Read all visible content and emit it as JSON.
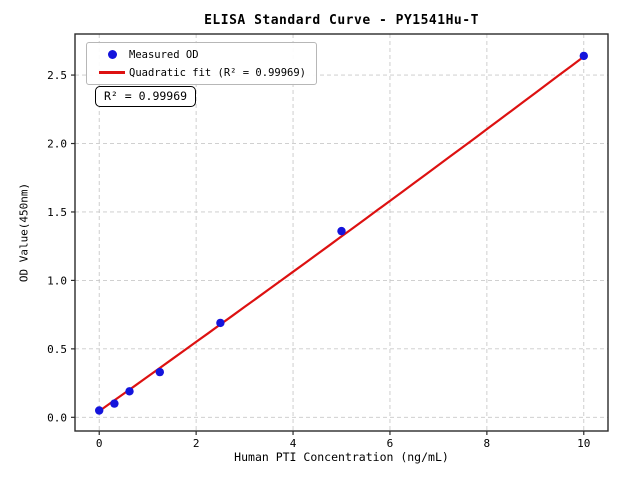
{
  "figure": {
    "title": "ELISA Standard Curve - PY1541Hu-T",
    "background_color": "#ffffff"
  },
  "legend": {
    "position": "upper-left",
    "items": [
      {
        "label": "Measured OD",
        "marker": "dot",
        "color": "#1414dc"
      },
      {
        "label": "Quadratic fit (R² = 0.99969)",
        "marker": "line",
        "color": "#dd1111"
      }
    ]
  },
  "annotation": {
    "r_squared_label": "R² = 0.99969"
  },
  "chart_data": {
    "type": "scatter",
    "title": "ELISA Standard Curve - PY1541Hu-T",
    "xlabel": "Human PTI Concentration (ng/mL)",
    "ylabel": "OD Value(450nm)",
    "xlim": [
      -0.5,
      10.5
    ],
    "ylim": [
      -0.1,
      2.8
    ],
    "xticks": [
      0,
      2,
      4,
      6,
      8,
      10
    ],
    "xtick_labels": [
      "0",
      "2",
      "4",
      "6",
      "8",
      "10"
    ],
    "yticks": [
      0.0,
      0.5,
      1.0,
      1.5,
      2.0,
      2.5
    ],
    "ytick_labels": [
      "0.0",
      "0.5",
      "1.0",
      "1.5",
      "2.0",
      "2.5"
    ],
    "grid": true,
    "grid_style": "dashed",
    "grid_color": "#c9c9c9",
    "spine_color": "#2b2b2b",
    "r_squared": 0.99969,
    "series": [
      {
        "name": "Measured OD",
        "type": "scatter",
        "color": "#1414dc",
        "x": [
          0,
          0.313,
          0.625,
          1.25,
          2.5,
          5,
          10
        ],
        "y": [
          0.05,
          0.1,
          0.19,
          0.33,
          0.69,
          1.36,
          2.64
        ]
      },
      {
        "name": "Quadratic fit (R² = 0.99969)",
        "type": "line",
        "color": "#dd1111",
        "fit": {
          "a": 0.045,
          "b": 0.2515,
          "c": 0.00075
        },
        "x_range": [
          0,
          10
        ]
      }
    ]
  }
}
